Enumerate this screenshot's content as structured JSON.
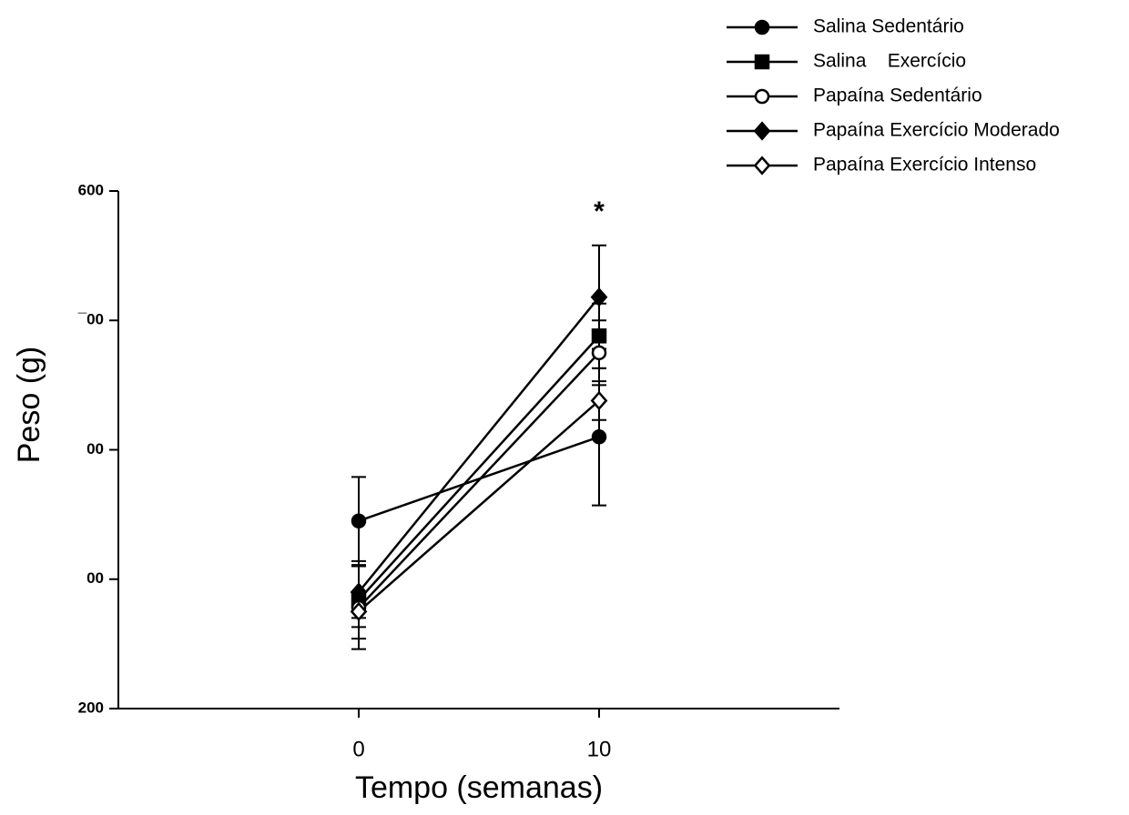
{
  "chart_data": {
    "type": "line",
    "xlabel": "Tempo (semanas)",
    "ylabel": "Peso (g)",
    "x": [
      0,
      10
    ],
    "xlim": [
      -10,
      20
    ],
    "xticks": [
      0,
      10
    ],
    "ylim": [
      200,
      600
    ],
    "yticks": [
      200,
      {
        "value": 300,
        "label": "00"
      },
      {
        "value": 400,
        "label": "00"
      },
      {
        "value": 500,
        "label": "¯00"
      },
      600
    ],
    "annotation": "*",
    "legend": "upper right",
    "series": [
      {
        "name": "Salina Sedentário",
        "color": "#000000",
        "marker": "circle",
        "filled": true,
        "values": [
          345,
          410
        ],
        "errors": [
          34,
          53
        ]
      },
      {
        "name": "Salina    Exercício",
        "color": "#000000",
        "marker": "square",
        "filled": true,
        "values": [
          284,
          488
        ],
        "errors": [
          30,
          25
        ]
      },
      {
        "name": "Papaína Sedentário",
        "color": "#000000",
        "marker": "circle",
        "filled": false,
        "values": [
          278,
          475
        ],
        "errors": [
          32,
          25
        ]
      },
      {
        "name": "Papaína Exercício Moderado",
        "color": "#000000",
        "marker": "diamond",
        "filled": true,
        "values": [
          290,
          518
        ],
        "errors": [
          20,
          40
        ]
      },
      {
        "name": "Papaína Exercício Intenso",
        "color": "#000000",
        "marker": "diamond",
        "filled": false,
        "values": [
          275,
          438
        ],
        "errors": [
          12,
          15
        ]
      }
    ]
  }
}
